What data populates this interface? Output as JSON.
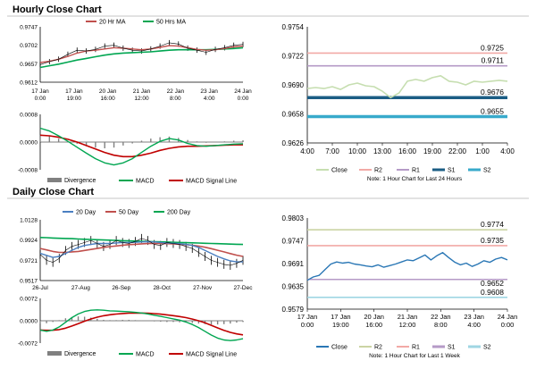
{
  "colors": {
    "ma20": "#c0504d",
    "ma50": "#00a651",
    "close_hourly": "#c6deb0",
    "r2": "#f2a9a6",
    "r1": "#b59ac7",
    "s1": "#1b5d84",
    "s2": "#38aacb",
    "close_daily": "#2a77b5",
    "d200": "#00a651",
    "d20": "#4a7fc1",
    "d50": "#c0504d",
    "r2_daily": "#cbd4a4",
    "r1_daily": "#f2a9a6",
    "s1_daily": "#b59ac7",
    "s2_daily": "#9fd6e3",
    "divergence": "#808080",
    "macd": "#00a651",
    "signal": "#c00000"
  },
  "sections": {
    "hourly_title": "Hourly Close Chart",
    "daily_title": "Daily Close Chart"
  },
  "chart_data": [
    {
      "id": "hourly_price",
      "type": "line",
      "y_ticks": [
        "0.9747",
        "0.9702",
        "0.9657",
        "0.9612"
      ],
      "ylim": [
        0.9612,
        0.9747
      ],
      "x_ticks": [
        [
          "17 Jan",
          "0:00"
        ],
        [
          "17 Jan",
          "19:00"
        ],
        [
          "20 Jan",
          "16:00"
        ],
        [
          "21 Jan",
          "12:00"
        ],
        [
          "22 Jan",
          "8:00"
        ],
        [
          "23 Jan",
          "4:00"
        ],
        [
          "24 Jan",
          "0:00"
        ]
      ],
      "legend": [
        "20 Hr MA",
        "50 Hrs MA"
      ],
      "series": [
        {
          "name": "Close",
          "values": [
            0.9655,
            0.9662,
            0.9668,
            0.968,
            0.969,
            0.9688,
            0.9692,
            0.97,
            0.9702,
            0.9695,
            0.969,
            0.9688,
            0.9693,
            0.97,
            0.9708,
            0.9705,
            0.9695,
            0.969,
            0.9685,
            0.9692,
            0.9696,
            0.9702,
            0.9704
          ]
        },
        {
          "name": "20 Hr MA",
          "values": [
            0.966,
            0.9663,
            0.9668,
            0.9675,
            0.9683,
            0.9688,
            0.969,
            0.9693,
            0.9696,
            0.9695,
            0.9693,
            0.9691,
            0.9693,
            0.9697,
            0.9701,
            0.97,
            0.9696,
            0.9692,
            0.969,
            0.9691,
            0.9694,
            0.9698,
            0.97
          ]
        },
        {
          "name": "50 Hrs MA",
          "values": [
            0.9648,
            0.9652,
            0.9656,
            0.9661,
            0.9666,
            0.967,
            0.9674,
            0.9678,
            0.9681,
            0.9683,
            0.9684,
            0.9685,
            0.9686,
            0.9688,
            0.969,
            0.9691,
            0.9691,
            0.9691,
            0.9691,
            0.9692,
            0.9693,
            0.9694,
            0.9696
          ]
        }
      ]
    },
    {
      "id": "hourly_macd",
      "type": "bar+line",
      "y_ticks": [
        "0.0008",
        "0.0000",
        "-0.0008"
      ],
      "ylim": [
        -0.0008,
        0.0008
      ],
      "legend": [
        "Divergence",
        "MACD",
        "MACD Signal Line"
      ],
      "divergence": [
        0.0002,
        0.00018,
        0.0001,
        3e-05,
        -5e-05,
        -0.00012,
        -0.00016,
        -0.00018,
        -0.00016,
        -0.0001,
        -4e-05,
        4e-05,
        0.0001,
        0.00014,
        0.00016,
        0.00012,
        6e-05,
        2e-05,
        -2e-05,
        -1e-05,
        2e-05,
        4e-05,
        5e-05
      ],
      "macd": [
        0.0004,
        0.00032,
        0.00018,
        2e-05,
        -0.00015,
        -0.00032,
        -0.00048,
        -0.0006,
        -0.00066,
        -0.0006,
        -0.00048,
        -0.0003,
        -0.00012,
        2e-05,
        0.0001,
        6e-05,
        -4e-05,
        -0.0001,
        -0.00012,
        -0.0001,
        -8e-05,
        -6e-05,
        -5e-05
      ],
      "signal": [
        0.0002,
        0.00018,
        0.00014,
        8e-05,
        0.0,
        -0.0001,
        -0.0002,
        -0.0003,
        -0.00038,
        -0.00042,
        -0.00042,
        -0.00038,
        -0.00032,
        -0.00024,
        -0.00018,
        -0.00014,
        -0.00012,
        -0.00012,
        -0.00011,
        -0.0001,
        -9e-05,
        -8e-05,
        -8e-05
      ]
    },
    {
      "id": "hourly_levels",
      "type": "line",
      "y_ticks": [
        "0.9754",
        "0.9722",
        "0.9690",
        "0.9658",
        "0.9626"
      ],
      "ylim": [
        0.9626,
        0.9754
      ],
      "x_ticks": [
        "4:00",
        "7:00",
        "10:00",
        "13:00",
        "16:00",
        "19:00",
        "22:00",
        "1:00",
        "4:00"
      ],
      "note": "Note: 1 Hour Chart for Last 24 Hours",
      "legend": [
        "Close",
        "R2",
        "R1",
        "S1",
        "S2"
      ],
      "levels": [
        {
          "name": "R2",
          "value": 0.9725,
          "label": "0.9725"
        },
        {
          "name": "R1",
          "value": 0.9711,
          "label": "0.9711"
        },
        {
          "name": "S1",
          "value": 0.9676,
          "label": "0.9676"
        },
        {
          "name": "S2",
          "value": 0.9655,
          "label": "0.9655"
        }
      ],
      "close": [
        0.9686,
        0.9687,
        0.9686,
        0.9688,
        0.9685,
        0.969,
        0.9692,
        0.9689,
        0.9688,
        0.9683,
        0.9676,
        0.9681,
        0.9694,
        0.9696,
        0.9694,
        0.9698,
        0.97,
        0.9694,
        0.9693,
        0.969,
        0.9694,
        0.9693,
        0.9694,
        0.9695,
        0.9694
      ]
    },
    {
      "id": "daily_price",
      "type": "line",
      "y_ticks": [
        "1.0128",
        "0.9924",
        "0.9721",
        "0.9517"
      ],
      "ylim": [
        0.9517,
        1.0128
      ],
      "x_ticks": [
        "26-Jul",
        "27-Aug",
        "26-Sep",
        "28-Oct",
        "27-Nov",
        "27-Dec"
      ],
      "legend": [
        "20 Day",
        "50 Day",
        "200 Day"
      ],
      "series": [
        {
          "name": "Close",
          "values": [
            0.978,
            0.972,
            0.97,
            0.974,
            0.982,
            0.986,
            0.988,
            0.99,
            0.992,
            0.989,
            0.986,
            0.988,
            0.992,
            0.99,
            0.989,
            0.991,
            0.994,
            0.992,
            0.988,
            0.987,
            0.99,
            0.989,
            0.988,
            0.986,
            0.984,
            0.98,
            0.976,
            0.972,
            0.97,
            0.968,
            0.967,
            0.969,
            0.972
          ]
        },
        {
          "name": "20 Day",
          "values": [
            0.979,
            0.977,
            0.975,
            0.976,
            0.979,
            0.982,
            0.985,
            0.987,
            0.988,
            0.989,
            0.989,
            0.989,
            0.9895,
            0.99,
            0.99,
            0.9902,
            0.9905,
            0.9908,
            0.9905,
            0.99,
            0.9895,
            0.9892,
            0.9888,
            0.988,
            0.987,
            0.985,
            0.982,
            0.979,
            0.976,
            0.9735,
            0.9715,
            0.9705,
            0.9705
          ]
        },
        {
          "name": "50 Day",
          "values": [
            0.984,
            0.9825,
            0.981,
            0.98,
            0.98,
            0.9805,
            0.981,
            0.982,
            0.983,
            0.984,
            0.985,
            0.9858,
            0.9865,
            0.9872,
            0.9878,
            0.9882,
            0.9886,
            0.9889,
            0.989,
            0.989,
            0.9888,
            0.9885,
            0.9882,
            0.9878,
            0.9872,
            0.9864,
            0.9852,
            0.9838,
            0.9822,
            0.9805,
            0.9788,
            0.9772,
            0.976
          ]
        },
        {
          "name": "200 Day",
          "values": [
            0.995,
            0.9948,
            0.9945,
            0.9942,
            0.994,
            0.9938,
            0.9935,
            0.9932,
            0.993,
            0.9928,
            0.9925,
            0.9923,
            0.992,
            0.9918,
            0.9916,
            0.9914,
            0.9912,
            0.991,
            0.9908,
            0.9906,
            0.9904,
            0.9902,
            0.99,
            0.9898,
            0.9896,
            0.9894,
            0.9892,
            0.989,
            0.9888,
            0.9886,
            0.9884,
            0.9882,
            0.988
          ]
        }
      ]
    },
    {
      "id": "daily_macd",
      "type": "bar+line",
      "y_ticks": [
        "0.0072",
        "0.0000",
        "-0.0072"
      ],
      "ylim": [
        -0.0072,
        0.0072
      ],
      "legend": [
        "Divergence",
        "MACD",
        "MACD Signal Line"
      ],
      "divergence": [
        -0.001,
        -0.0008,
        -0.0004,
        0.0002,
        0.0008,
        0.0012,
        0.0014,
        0.0013,
        0.001,
        0.0006,
        0.0003,
        0.0002,
        0.0002,
        0.0003,
        0.0003,
        0.0002,
        0.0001,
        0.0,
        -0.0002,
        -0.0003,
        -0.0004,
        -0.0004,
        -0.0005,
        -0.0006,
        -0.0007,
        -0.0009,
        -0.0011,
        -0.0012,
        -0.0012,
        -0.0011,
        -0.0009,
        -0.0006,
        -0.0004
      ],
      "macd": [
        -0.003,
        -0.0034,
        -0.003,
        -0.002,
        -0.0005,
        0.001,
        0.0022,
        0.003,
        0.0034,
        0.0035,
        0.0034,
        0.0032,
        0.0031,
        0.003,
        0.0029,
        0.0027,
        0.0025,
        0.0022,
        0.0018,
        0.0014,
        0.001,
        0.0006,
        0.0002,
        -0.0004,
        -0.0012,
        -0.0022,
        -0.0034,
        -0.0046,
        -0.0056,
        -0.0062,
        -0.0064,
        -0.0062,
        -0.0058
      ]
    },
    {
      "placeholder": "-"
    },
    {
      "id": "daily_levels",
      "type": "line",
      "y_ticks": [
        "0.9803",
        "0.9747",
        "0.9691",
        "0.9635",
        "0.9579"
      ],
      "ylim": [
        0.9579,
        0.9803
      ],
      "x_ticks": [
        [
          "17 Jan",
          "0:00"
        ],
        [
          "17 Jan",
          "19:00"
        ],
        [
          "20 Jan",
          "16:00"
        ],
        [
          "21 Jan",
          "12:00"
        ],
        [
          "22 Jan",
          "8:00"
        ],
        [
          "23 Jan",
          "4:00"
        ],
        [
          "24 Jan",
          "0:00"
        ]
      ],
      "note": "Note: 1 Hour Chart for Last 1 Week",
      "legend": [
        "Close",
        "R2",
        "R1",
        "S1",
        "S2"
      ],
      "levels": [
        {
          "name": "R2",
          "value": 0.9774,
          "label": "0.9774"
        },
        {
          "name": "R1",
          "value": 0.9735,
          "label": "0.9735"
        },
        {
          "name": "S1",
          "value": 0.9652,
          "label": "0.9652"
        },
        {
          "name": "S2",
          "value": 0.9608,
          "label": "0.9608"
        }
      ],
      "close": [
        0.965,
        0.9658,
        0.9662,
        0.9676,
        0.969,
        0.9695,
        0.9692,
        0.9694,
        0.969,
        0.9688,
        0.9685,
        0.9683,
        0.9688,
        0.9682,
        0.9686,
        0.969,
        0.9695,
        0.97,
        0.9698,
        0.9705,
        0.9712,
        0.97,
        0.971,
        0.9718,
        0.9706,
        0.9695,
        0.9688,
        0.9692,
        0.9684,
        0.969,
        0.9698,
        0.9694,
        0.9702,
        0.9706,
        0.97
      ]
    }
  ]
}
